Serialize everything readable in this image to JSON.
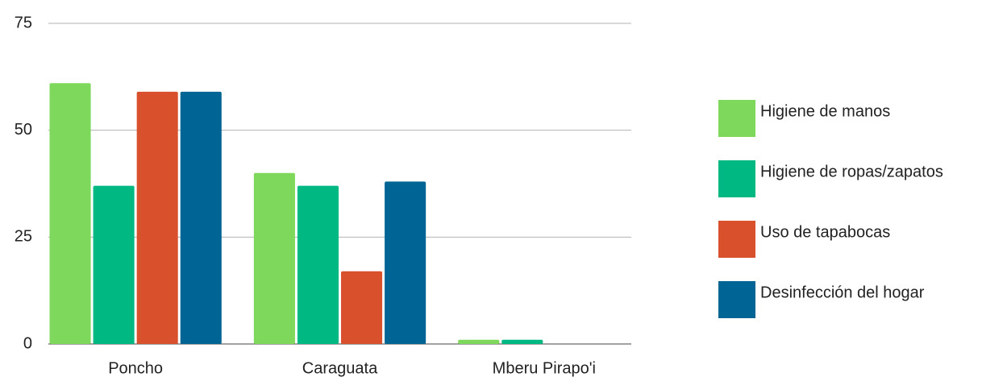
{
  "chart_data": {
    "type": "bar",
    "categories": [
      "Poncho",
      "Caraguata",
      "Mberu Pirapo'i"
    ],
    "series": [
      {
        "name": "Higiene de manos",
        "color": "#7dd85b",
        "values": [
          61,
          40,
          1
        ]
      },
      {
        "name": "Higiene de ropas/zapatos",
        "color": "#00b982",
        "values": [
          37,
          37,
          1
        ]
      },
      {
        "name": "Uso de tapabocas",
        "color": "#d9512c",
        "values": [
          59,
          17,
          0
        ]
      },
      {
        "name": "Desinfección del hogar",
        "color": "#006594",
        "values": [
          59,
          38,
          0
        ]
      }
    ],
    "ylim": [
      0,
      75
    ],
    "yticks": [
      0,
      25,
      50,
      75
    ],
    "grid": true,
    "legend": "right"
  }
}
